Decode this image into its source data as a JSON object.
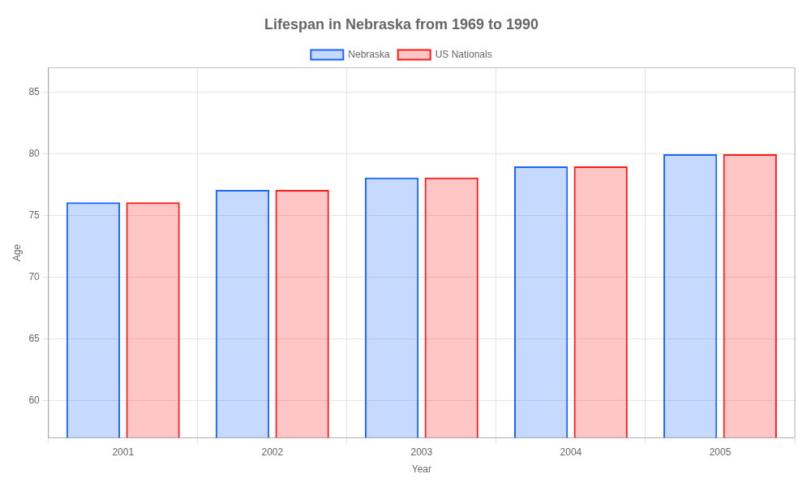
{
  "chart_data": {
    "type": "bar",
    "title": "Lifespan in Nebraska from 1969 to 1990",
    "x_label": "Year",
    "y_label": "Age",
    "categories": [
      "2001",
      "2002",
      "2003",
      "2004",
      "2005"
    ],
    "series": [
      {
        "name": "Nebraska",
        "color": "#1a66ff",
        "values": [
          76.1,
          77.1,
          78.1,
          79.0,
          80.0
        ]
      },
      {
        "name": "US Nationals",
        "color": "#ff1a1a",
        "values": [
          76.1,
          77.1,
          78.1,
          79.0,
          80.0
        ]
      }
    ],
    "ylim": [
      57,
      87
    ],
    "yticks": [
      60,
      65,
      70,
      75,
      80,
      85
    ],
    "grid": true,
    "legend": "top"
  }
}
